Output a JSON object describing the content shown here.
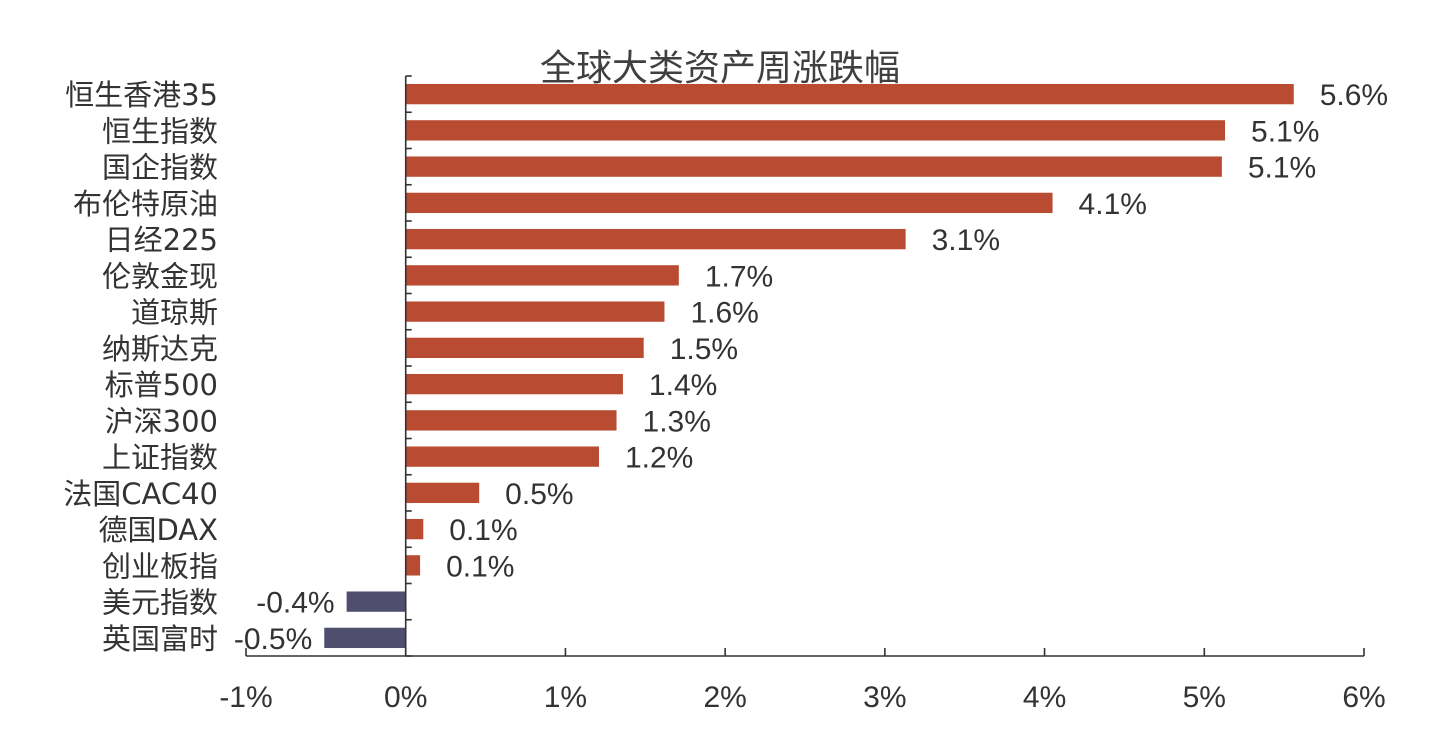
{
  "chart_data": {
    "type": "bar",
    "orientation": "horizontal",
    "title": "全球大类资产周涨跌幅",
    "categories": [
      "恒生香港35",
      "恒生指数",
      "国企指数",
      "布伦特原油",
      "日经225",
      "伦敦金现",
      "道琼斯",
      "纳斯达克",
      "标普500",
      "沪深300",
      "上证指数",
      "法国CAC40",
      "德国DAX",
      "创业板指",
      "美元指数",
      "英国富时"
    ],
    "values": [
      5.56,
      5.13,
      5.11,
      4.05,
      3.13,
      1.71,
      1.62,
      1.49,
      1.36,
      1.32,
      1.21,
      0.46,
      0.11,
      0.09,
      -0.37,
      -0.51
    ],
    "value_labels": [
      "5.6%",
      "5.1%",
      "5.1%",
      "4.1%",
      "3.1%",
      "1.7%",
      "1.6%",
      "1.5%",
      "1.4%",
      "1.3%",
      "1.2%",
      "0.5%",
      "0.1%",
      "0.1%",
      "-0.4%",
      "-0.5%"
    ],
    "xlim": [
      -1,
      6
    ],
    "x_ticks": [
      -1,
      0,
      1,
      2,
      3,
      4,
      5,
      6
    ],
    "x_tick_labels": [
      "-1%",
      "0%",
      "1%",
      "2%",
      "3%",
      "4%",
      "5%",
      "6%"
    ],
    "colors": {
      "positive": "#B84B31",
      "negative": "#4F4E6E"
    },
    "grid": false,
    "legend": "none"
  }
}
